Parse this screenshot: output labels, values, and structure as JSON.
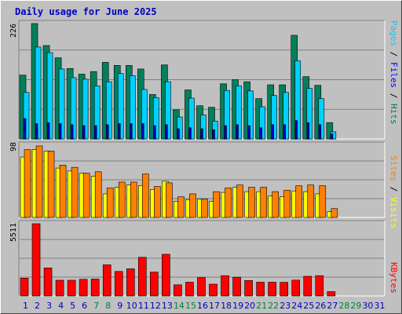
{
  "title": "Daily usage for June 2025",
  "colors": {
    "background": "#c0c0c0",
    "plot_bg": "#c0c0c0",
    "gridline": "#808080",
    "hits": "#00805c",
    "files": "#00c0ff",
    "pages": "#00d0ff",
    "visits": "#ffff00",
    "sites": "#ff8000",
    "kbytes": "#ff0000",
    "weekday_label": "#0000c0",
    "weekend_label": "#008040"
  },
  "legends": {
    "top": [
      {
        "text": "Pages",
        "color": "#00d0ff"
      },
      {
        "text": " / ",
        "color": "#000000"
      },
      {
        "text": "Files",
        "color": "#0000ff"
      },
      {
        "text": " / ",
        "color": "#000000"
      },
      {
        "text": "Hits",
        "color": "#00805c"
      }
    ],
    "middle": [
      {
        "text": "Sites",
        "color": "#ff8000"
      },
      {
        "text": " / ",
        "color": "#000000"
      },
      {
        "text": "Visits",
        "color": "#ffff00"
      }
    ],
    "bottom": [
      {
        "text": "KBytes",
        "color": "#ff0000"
      }
    ]
  },
  "chart_data": [
    {
      "type": "bar",
      "title": "Daily usage for June 2025",
      "ymax_label": "226",
      "ylim": [
        0,
        226
      ],
      "categories": [
        "1",
        "2",
        "3",
        "4",
        "5",
        "6",
        "7",
        "8",
        "9",
        "10",
        "11",
        "12",
        "13",
        "14",
        "15",
        "16",
        "17",
        "18",
        "19",
        "20",
        "21",
        "22",
        "23",
        "24",
        "25",
        "26",
        "27",
        "28",
        "29",
        "30",
        "31"
      ],
      "weekend_days": [
        "7",
        "8",
        "14",
        "15",
        "21",
        "22",
        "28",
        "29"
      ],
      "series": [
        {
          "name": "Hits",
          "values": [
            125,
            226,
            183,
            159,
            138,
            127,
            132,
            150,
            144,
            144,
            137,
            87,
            145,
            57,
            96,
            65,
            62,
            108,
            116,
            112,
            79,
            106,
            106,
            203,
            122,
            105,
            32,
            0,
            0,
            0,
            0
          ]
        },
        {
          "name": "Files",
          "values": [
            40,
            30,
            32,
            30,
            28,
            26,
            26,
            28,
            30,
            30,
            30,
            26,
            28,
            20,
            22,
            20,
            18,
            26,
            28,
            26,
            22,
            28,
            28,
            36,
            32,
            28,
            10,
            0,
            0,
            0,
            0
          ]
        },
        {
          "name": "Pages",
          "values": [
            91,
            180,
            169,
            137,
            120,
            117,
            104,
            112,
            128,
            124,
            97,
            81,
            112,
            43,
            80,
            47,
            35,
            95,
            104,
            94,
            63,
            85,
            91,
            153,
            99,
            79,
            14,
            0,
            0,
            0,
            0
          ]
        }
      ]
    },
    {
      "type": "bar",
      "ymax_label": "98",
      "ylim": [
        0,
        98
      ],
      "categories": [
        "1",
        "2",
        "3",
        "4",
        "5",
        "6",
        "7",
        "8",
        "9",
        "10",
        "11",
        "12",
        "13",
        "14",
        "15",
        "16",
        "17",
        "18",
        "19",
        "20",
        "21",
        "22",
        "23",
        "24",
        "25",
        "26",
        "27",
        "28",
        "29",
        "30",
        "31"
      ],
      "series": [
        {
          "name": "Sites",
          "values": [
            92,
            97,
            90,
            71,
            68,
            60,
            62,
            40,
            48,
            48,
            59,
            42,
            47,
            28,
            32,
            25,
            35,
            40,
            44,
            41,
            41,
            35,
            37,
            43,
            44,
            43,
            12,
            0,
            0,
            0,
            0
          ]
        },
        {
          "name": "Visits",
          "values": [
            82,
            92,
            90,
            67,
            63,
            60,
            56,
            32,
            41,
            44,
            43,
            38,
            49,
            22,
            24,
            25,
            22,
            34,
            41,
            35,
            35,
            29,
            28,
            36,
            35,
            32,
            8,
            0,
            0,
            0,
            0
          ]
        }
      ]
    },
    {
      "type": "bar",
      "ymax_label": "5511",
      "ylim": [
        0,
        5511
      ],
      "categories": [
        "1",
        "2",
        "3",
        "4",
        "5",
        "6",
        "7",
        "8",
        "9",
        "10",
        "11",
        "12",
        "13",
        "14",
        "15",
        "16",
        "17",
        "18",
        "19",
        "20",
        "21",
        "22",
        "23",
        "24",
        "25",
        "26",
        "27",
        "28",
        "29",
        "30",
        "31"
      ],
      "series": [
        {
          "name": "KBytes",
          "values": [
            1360,
            5511,
            2140,
            1200,
            1200,
            1270,
            1290,
            2380,
            1870,
            2070,
            2950,
            1820,
            3180,
            850,
            1050,
            1400,
            900,
            1550,
            1430,
            1180,
            1050,
            1050,
            1040,
            1210,
            1500,
            1550,
            330,
            0,
            0,
            0,
            0
          ]
        }
      ]
    }
  ]
}
